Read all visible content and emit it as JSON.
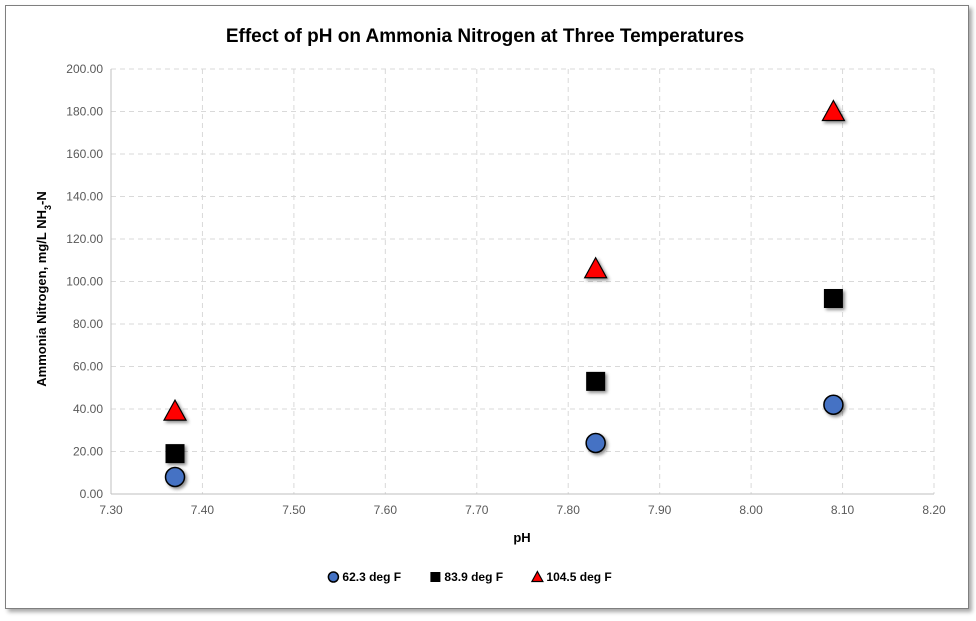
{
  "chart_data": {
    "type": "scatter",
    "title": "Effect of pH on Ammonia Nitrogen at Three Temperatures",
    "xlabel": "pH",
    "ylabel": {
      "main": "Ammonia Nitrogen, mg/L NH",
      "subscript": "3",
      "suffix": "-N"
    },
    "xlim": [
      7.3,
      8.2
    ],
    "ylim": [
      0,
      200
    ],
    "x_ticks": [
      "7.30",
      "7.40",
      "7.50",
      "7.60",
      "7.70",
      "7.80",
      "7.90",
      "8.00",
      "8.10",
      "8.20"
    ],
    "y_ticks": [
      "0.00",
      "20.00",
      "40.00",
      "60.00",
      "80.00",
      "100.00",
      "120.00",
      "140.00",
      "160.00",
      "180.00",
      "200.00"
    ],
    "grid": true,
    "legend_position": "bottom",
    "series": [
      {
        "name": "62.3 deg F",
        "marker": "circle",
        "color": "#4472c4",
        "points": [
          {
            "x": 7.37,
            "y": 8.0
          },
          {
            "x": 7.83,
            "y": 24.0
          },
          {
            "x": 8.09,
            "y": 42.0
          }
        ]
      },
      {
        "name": "83.9 deg F",
        "marker": "square",
        "color": "#000000",
        "points": [
          {
            "x": 7.37,
            "y": 19.0
          },
          {
            "x": 7.83,
            "y": 53.0
          },
          {
            "x": 8.09,
            "y": 92.0
          }
        ]
      },
      {
        "name": "104.5 deg F",
        "marker": "triangle",
        "color": "#ff0000",
        "points": [
          {
            "x": 7.37,
            "y": 39.0
          },
          {
            "x": 7.83,
            "y": 106.0
          },
          {
            "x": 8.09,
            "y": 180.0
          }
        ]
      }
    ]
  }
}
